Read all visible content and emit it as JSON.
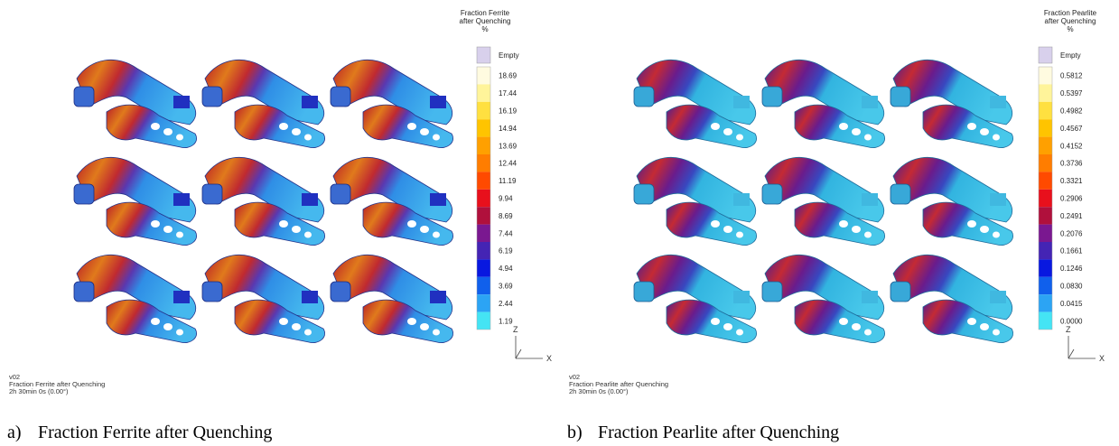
{
  "panels": [
    {
      "legend": {
        "title": [
          "Fraction Ferrite",
          "after Quenching",
          "%"
        ],
        "labels": [
          "Empty",
          "18.69",
          "17.44",
          "16.19",
          "14.94",
          "13.69",
          "12.44",
          "11.19",
          "9.94",
          "8.69",
          "7.44",
          "6.19",
          "4.94",
          "3.69",
          "2.44",
          "1.19"
        ]
      },
      "info": [
        "v02",
        "Fraction Ferrite after Quenching",
        "2h 30min 0s (0.00°)"
      ],
      "axes": {
        "z": "Z",
        "x": "X"
      },
      "caption": {
        "letter": "a)",
        "text": "Fraction Ferrite after Quenching"
      }
    },
    {
      "legend": {
        "title": [
          "Fraction Pearlite",
          "after Quenching",
          "%"
        ],
        "labels": [
          "Empty",
          "0.5812",
          "0.5397",
          "0.4982",
          "0.4567",
          "0.4152",
          "0.3736",
          "0.3321",
          "0.2906",
          "0.2491",
          "0.2076",
          "0.1661",
          "0.1246",
          "0.0830",
          "0.0415",
          "0.0000"
        ]
      },
      "info": [
        "v02",
        "Fraction Pearlite after Quenching",
        "2h 30min 0s (0.00°)"
      ],
      "axes": {
        "z": "Z",
        "x": "X"
      },
      "caption": {
        "letter": "b)",
        "text": "Fraction Pearlite after Quenching"
      }
    }
  ]
}
